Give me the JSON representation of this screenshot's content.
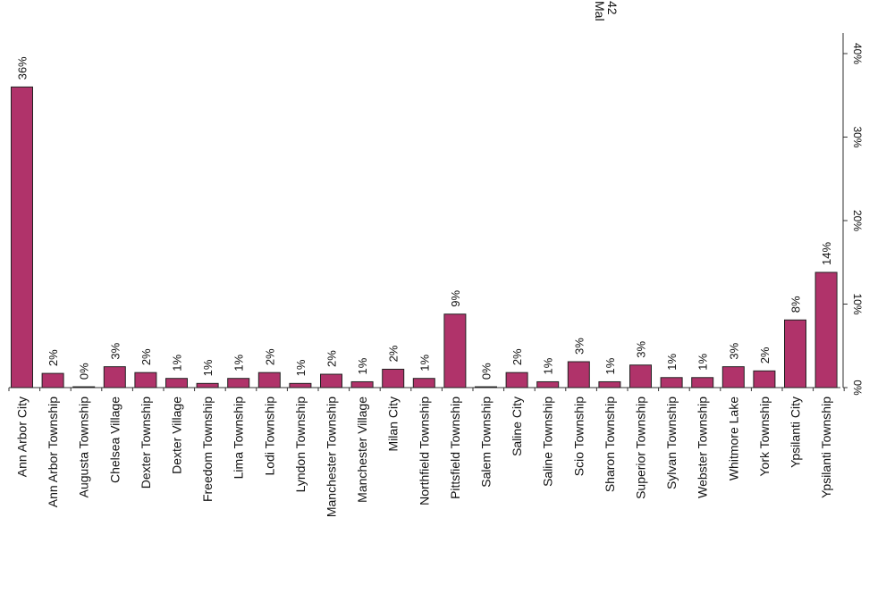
{
  "chart_data": {
    "type": "bar",
    "orientation": "rotated-90-clockwise",
    "categories": [
      "Ann Arbor City",
      "Ann Arbor Township",
      "Augusta Township",
      "Chelsea Village",
      "Dexter Township",
      "Dexter Village",
      "Freedom Township",
      "Lima Township",
      "Lodi Township",
      "Lyndon Township",
      "Manchester Township",
      "Manchester Village",
      "Milan City",
      "Northfield Township",
      "Pittsfield Township",
      "Salem Township",
      "Saline City",
      "Saline Township",
      "Scio Township",
      "Sharon Township",
      "Superior Township",
      "Sylvan Township",
      "Webster Township",
      "Whitmore Lake",
      "York Township",
      "Ypsilanti City",
      "Ypsilanti Township"
    ],
    "values": [
      36,
      1.7,
      0.1,
      2.5,
      1.8,
      1.1,
      0.5,
      1.1,
      1.8,
      0.5,
      1.6,
      0.7,
      2.2,
      1.1,
      8.8,
      0.1,
      1.8,
      0.7,
      3.1,
      0.7,
      2.7,
      1.2,
      1.2,
      2.5,
      2.0,
      8.1,
      13.8
    ],
    "data_labels": [
      "36%",
      "2%",
      "0%",
      "3%",
      "2%",
      "1%",
      "1%",
      "1%",
      "2%",
      "1%",
      "2%",
      "1%",
      "2%",
      "1%",
      "9%",
      "0%",
      "2%",
      "1%",
      "3%",
      "1%",
      "3%",
      "1%",
      "1%",
      "3%",
      "2%",
      "8%",
      "14%"
    ],
    "ylim": [
      0,
      40
    ],
    "yticks": [
      "0%",
      "10%",
      "20%",
      "30%",
      "40%"
    ],
    "grid": false,
    "bar_color": "#b0336a",
    "legend_fragment": [
      "Mal",
      "42"
    ]
  }
}
